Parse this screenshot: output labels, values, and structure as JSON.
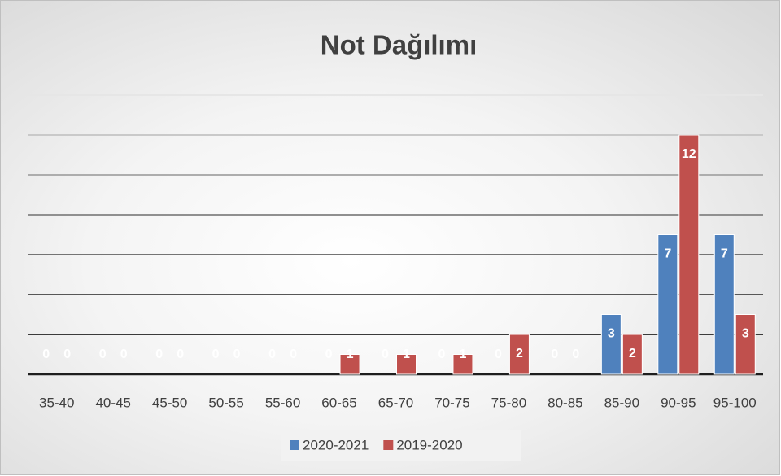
{
  "chart_data": {
    "type": "bar",
    "title": "Not Dağılımı",
    "categories": [
      "35-40",
      "40-45",
      "45-50",
      "50-55",
      "55-60",
      "60-65",
      "65-70",
      "70-75",
      "75-80",
      "80-85",
      "85-90",
      "90-95",
      "95-100"
    ],
    "series": [
      {
        "name": "2020-2021",
        "color": "#4f81bd",
        "values": [
          0,
          0,
          0,
          0,
          0,
          0,
          0,
          0,
          0,
          0,
          3,
          7,
          7
        ]
      },
      {
        "name": "2019-2020",
        "color": "#c0504d",
        "values": [
          0,
          0,
          0,
          0,
          0,
          1,
          1,
          1,
          2,
          0,
          2,
          12,
          3
        ]
      }
    ],
    "ylim": [
      0,
      14
    ],
    "yticks": [
      0,
      2,
      4,
      6,
      8,
      10,
      12,
      14
    ],
    "grid": true,
    "legend": "bottom"
  }
}
